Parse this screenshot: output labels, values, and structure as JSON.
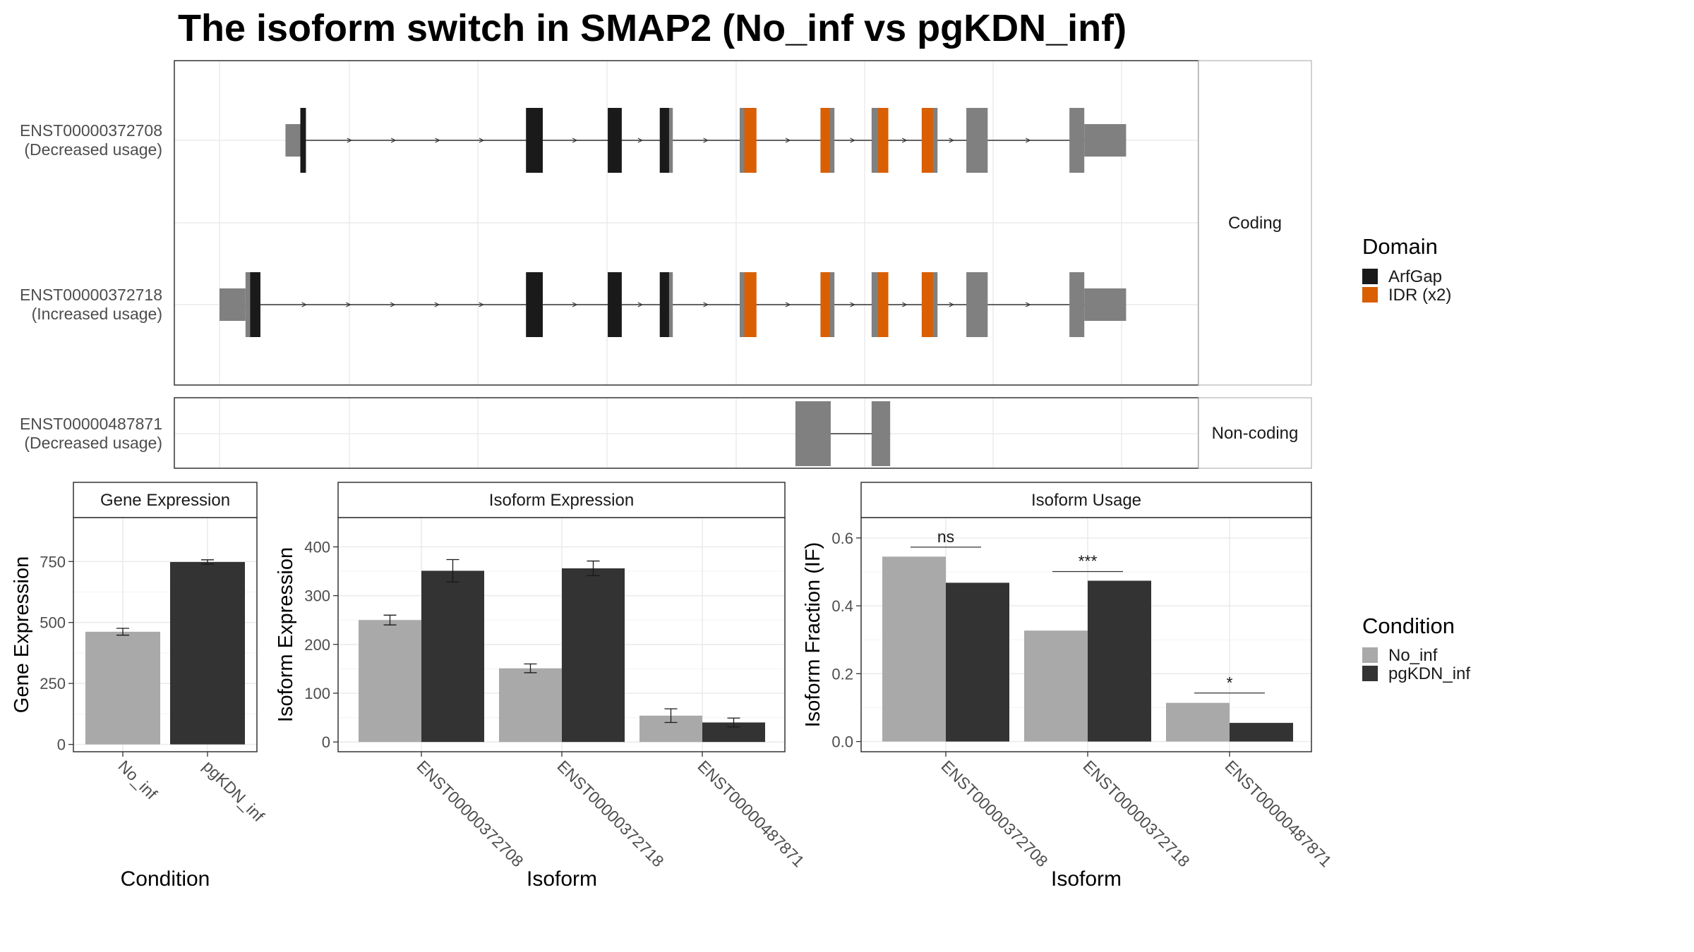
{
  "title": "The isoform switch in SMAP2 (No_inf vs pgKDN_inf)",
  "colors": {
    "exon": "#808080",
    "arfgap": "#1a1a1a",
    "idr": "#d95f02",
    "no_inf": "#a9a9a9",
    "pgkdn_inf": "#333333",
    "grid": "#ebebeb",
    "panel_border": "#333333",
    "strip_border": "#b3b3b3",
    "intron": "#333333"
  },
  "structure": {
    "facets": [
      "Coding",
      "Non-coding"
    ],
    "legend": {
      "title": "Domain",
      "items": [
        {
          "label": "ArfGap",
          "color": "#1a1a1a"
        },
        {
          "label": "IDR (x2)",
          "color": "#d95f02"
        }
      ]
    },
    "transcripts": [
      {
        "id": "ENST00000372708",
        "usage": "(Decreased usage)",
        "facet": "Coding",
        "exons": [
          [
            0.071,
            0.087,
            "utr"
          ],
          [
            0.087,
            0.093,
            "cds"
          ],
          [
            0.33,
            0.348,
            "cds"
          ],
          [
            0.418,
            0.433,
            "cds"
          ],
          [
            0.474,
            0.488,
            "cds"
          ],
          [
            0.56,
            0.578,
            "cds"
          ],
          [
            0.647,
            0.662,
            "cds"
          ],
          [
            0.702,
            0.72,
            "cds"
          ],
          [
            0.756,
            0.773,
            "cds"
          ],
          [
            0.804,
            0.827,
            "cds"
          ],
          [
            0.915,
            0.931,
            "cds"
          ],
          [
            0.931,
            0.976,
            "utr"
          ]
        ],
        "domains": [
          [
            0.087,
            0.093,
            "ArfGap"
          ],
          [
            0.33,
            0.348,
            "ArfGap"
          ],
          [
            0.418,
            0.433,
            "ArfGap"
          ],
          [
            0.474,
            0.484,
            "ArfGap"
          ],
          [
            0.565,
            0.578,
            "IDR"
          ],
          [
            0.647,
            0.657,
            "IDR"
          ],
          [
            0.709,
            0.72,
            "IDR"
          ],
          [
            0.756,
            0.768,
            "IDR"
          ]
        ]
      },
      {
        "id": "ENST00000372718",
        "usage": "(Increased usage)",
        "facet": "Coding",
        "exons": [
          [
            0.0,
            0.028,
            "utr"
          ],
          [
            0.028,
            0.044,
            "cds"
          ],
          [
            0.33,
            0.348,
            "cds"
          ],
          [
            0.418,
            0.433,
            "cds"
          ],
          [
            0.474,
            0.488,
            "cds"
          ],
          [
            0.56,
            0.578,
            "cds"
          ],
          [
            0.647,
            0.662,
            "cds"
          ],
          [
            0.702,
            0.72,
            "cds"
          ],
          [
            0.756,
            0.773,
            "cds"
          ],
          [
            0.804,
            0.827,
            "cds"
          ],
          [
            0.915,
            0.931,
            "cds"
          ],
          [
            0.931,
            0.976,
            "utr"
          ]
        ],
        "domains": [
          [
            0.033,
            0.044,
            "ArfGap"
          ],
          [
            0.33,
            0.348,
            "ArfGap"
          ],
          [
            0.418,
            0.433,
            "ArfGap"
          ],
          [
            0.474,
            0.484,
            "ArfGap"
          ],
          [
            0.565,
            0.578,
            "IDR"
          ],
          [
            0.647,
            0.657,
            "IDR"
          ],
          [
            0.709,
            0.72,
            "IDR"
          ],
          [
            0.756,
            0.768,
            "IDR"
          ]
        ]
      },
      {
        "id": "ENST00000487871",
        "usage": "(Decreased usage)",
        "facet": "Non-coding",
        "exons": [
          [
            0.62,
            0.658,
            "cds"
          ],
          [
            0.702,
            0.722,
            "cds"
          ]
        ],
        "domains": []
      }
    ]
  },
  "chart_data": [
    {
      "type": "bar",
      "strip": "Gene Expression",
      "xlabel": "Condition",
      "ylabel": "Gene Expression",
      "categories": [
        "No_inf",
        "pgKDN_inf"
      ],
      "values": [
        462,
        748
      ],
      "errors": [
        14,
        9
      ],
      "colors": [
        "#a9a9a9",
        "#333333"
      ],
      "ylim": [
        -30,
        930
      ],
      "yticks": [
        0,
        250,
        500,
        750
      ],
      "ytick_labels": [
        "0",
        "250",
        "500",
        "750"
      ]
    },
    {
      "type": "bar",
      "strip": "Isoform Expression",
      "xlabel": "Isoform",
      "ylabel": "Isoform Expression",
      "categories": [
        "ENST00000372708",
        "ENST00000372718",
        "ENST00000487871"
      ],
      "series": [
        {
          "name": "No_inf",
          "values": [
            250,
            151,
            54
          ],
          "errors": [
            10,
            9,
            14
          ]
        },
        {
          "name": "pgKDN_inf",
          "values": [
            351,
            356,
            40
          ],
          "errors": [
            23,
            15,
            9
          ]
        }
      ],
      "ylim": [
        -20,
        460
      ],
      "yticks": [
        0,
        100,
        200,
        300,
        400
      ],
      "ytick_labels": [
        "0",
        "100",
        "200",
        "300",
        "400"
      ]
    },
    {
      "type": "bar",
      "strip": "Isoform Usage",
      "xlabel": "Isoform",
      "ylabel": "Isoform Fraction (IF)",
      "categories": [
        "ENST00000372708",
        "ENST00000372718",
        "ENST00000487871"
      ],
      "series": [
        {
          "name": "No_inf",
          "values": [
            0.545,
            0.327,
            0.114
          ]
        },
        {
          "name": "pgKDN_inf",
          "values": [
            0.468,
            0.474,
            0.055
          ]
        }
      ],
      "significance": [
        "ns",
        "***",
        "*"
      ],
      "sig_y": [
        0.573,
        0.501,
        0.143
      ],
      "ylim": [
        -0.03,
        0.66
      ],
      "yticks": [
        0.0,
        0.2,
        0.4,
        0.6
      ],
      "ytick_labels": [
        "0.0",
        "0.2",
        "0.4",
        "0.6"
      ]
    }
  ],
  "condition_legend": {
    "title": "Condition",
    "items": [
      {
        "label": "No_inf",
        "color": "#a9a9a9"
      },
      {
        "label": "pgKDN_inf",
        "color": "#333333"
      }
    ]
  }
}
